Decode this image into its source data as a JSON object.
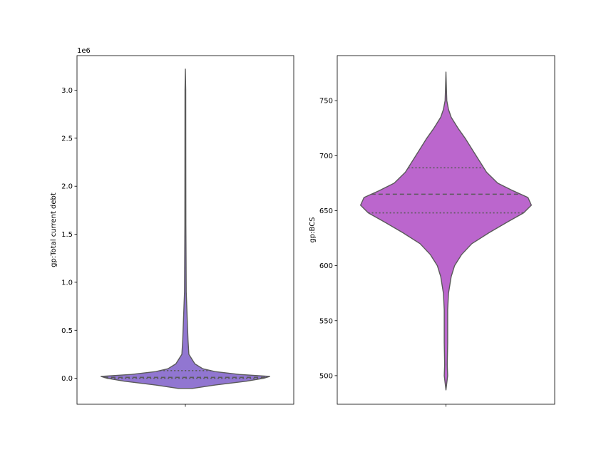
{
  "chart_data": [
    {
      "type": "violin",
      "ylabel": "gp:Total current debt",
      "offset_label": "1e6",
      "yticks": [
        0.0,
        0.5,
        1.0,
        1.5,
        2.0,
        2.5,
        3.0
      ],
      "ytick_labels": [
        "0.0",
        "0.5",
        "1.0",
        "1.5",
        "2.0",
        "2.5",
        "3.0"
      ],
      "ylim": [
        -0.27,
        3.36
      ],
      "color": "#9176d1",
      "quartiles": [
        0.0,
        0.01,
        0.08
      ],
      "profile": [
        [
          -0.105,
          0.08
        ],
        [
          -0.07,
          0.34
        ],
        [
          -0.03,
          0.7
        ],
        [
          0.0,
          0.9
        ],
        [
          0.02,
          0.97
        ],
        [
          0.04,
          0.62
        ],
        [
          0.07,
          0.34
        ],
        [
          0.1,
          0.2
        ],
        [
          0.15,
          0.11
        ],
        [
          0.25,
          0.04
        ],
        [
          0.4,
          0.03
        ],
        [
          0.6,
          0.022
        ],
        [
          0.9,
          0.01
        ],
        [
          1.2,
          0.008
        ],
        [
          1.6,
          0.006
        ],
        [
          2.2,
          0.005
        ],
        [
          3.0,
          0.004
        ],
        [
          3.22,
          0.0
        ]
      ]
    },
    {
      "type": "violin",
      "ylabel": "gp:BCS",
      "yticks": [
        500,
        550,
        600,
        650,
        700,
        750
      ],
      "ytick_labels": [
        "500",
        "550",
        "600",
        "650",
        "700",
        "750"
      ],
      "ylim": [
        474,
        791
      ],
      "color": "#bb66cd",
      "quartiles": [
        648,
        665,
        689
      ],
      "profile": [
        [
          487,
          0.0
        ],
        [
          500,
          0.02
        ],
        [
          510,
          0.015
        ],
        [
          530,
          0.02
        ],
        [
          560,
          0.02
        ],
        [
          575,
          0.03
        ],
        [
          590,
          0.06
        ],
        [
          600,
          0.1
        ],
        [
          610,
          0.18
        ],
        [
          620,
          0.3
        ],
        [
          630,
          0.5
        ],
        [
          640,
          0.72
        ],
        [
          648,
          0.9
        ],
        [
          655,
          0.99
        ],
        [
          662,
          0.95
        ],
        [
          668,
          0.78
        ],
        [
          675,
          0.6
        ],
        [
          685,
          0.47
        ],
        [
          695,
          0.39
        ],
        [
          705,
          0.31
        ],
        [
          715,
          0.23
        ],
        [
          725,
          0.14
        ],
        [
          735,
          0.06
        ],
        [
          742,
          0.03
        ],
        [
          750,
          0.01
        ],
        [
          760,
          0.006
        ],
        [
          776,
          0.0
        ]
      ]
    }
  ]
}
